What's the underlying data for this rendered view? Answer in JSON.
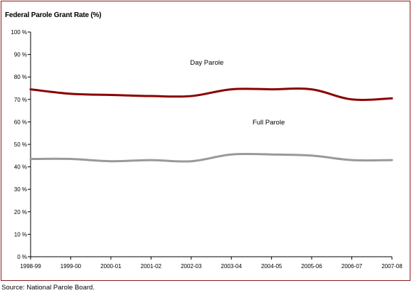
{
  "chart_data": {
    "type": "line",
    "title": "Federal Parole Grant Rate (%)",
    "xlabel": "",
    "ylabel": "",
    "categories": [
      "1998-99",
      "1999-00",
      "2000-01",
      "2001-02",
      "2002-03",
      "2003-04",
      "2004-05",
      "2005-06",
      "2006-07",
      "2007-08"
    ],
    "ylim": [
      0,
      100
    ],
    "yticks": [
      0,
      10,
      20,
      30,
      40,
      50,
      60,
      70,
      80,
      90,
      100
    ],
    "ytick_labels": [
      "0 %",
      "10 %",
      "20 %",
      "30 %",
      "40 %",
      "50 %",
      "60 %",
      "70 %",
      "80 %",
      "90 %",
      "100 %"
    ],
    "grid": false,
    "legend": "none",
    "series": [
      {
        "name": "Day Parole",
        "values": [
          74.5,
          72.5,
          72,
          71.5,
          71.5,
          74.5,
          74.5,
          74.5,
          70,
          70.5
        ],
        "color": "#8b0000"
      },
      {
        "name": "Full Parole",
        "values": [
          43.5,
          43.5,
          42.5,
          43,
          42.5,
          45.5,
          45.5,
          45,
          43,
          43
        ],
        "color": "#999999"
      }
    ]
  },
  "source": "Source:  National Parole Board."
}
